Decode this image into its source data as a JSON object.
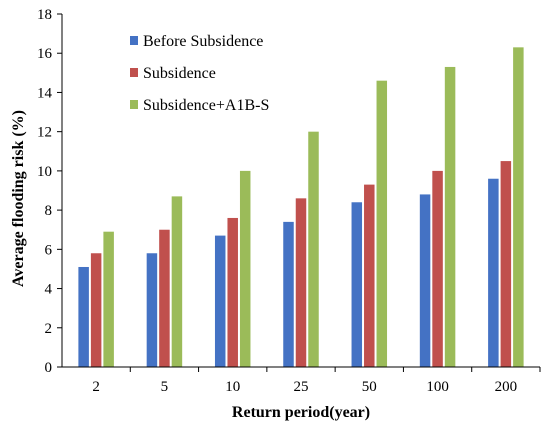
{
  "chart_data": {
    "type": "bar",
    "title": "",
    "xlabel": "Return period(year)",
    "ylabel": "Average flooding risk (%)",
    "categories": [
      "2",
      "5",
      "10",
      "25",
      "50",
      "100",
      "200"
    ],
    "ylim": [
      0,
      18
    ],
    "yticks": [
      0,
      2,
      4,
      6,
      8,
      10,
      12,
      14,
      16,
      18
    ],
    "grid": false,
    "legend_position": "top-left",
    "series": [
      {
        "name": "Before Subsidence",
        "color": "#4472C4",
        "values": [
          5.1,
          5.8,
          6.7,
          7.4,
          8.4,
          8.8,
          9.6
        ]
      },
      {
        "name": "Subsidence",
        "color": "#C0504D",
        "values": [
          5.8,
          7.0,
          7.6,
          8.6,
          9.3,
          10.0,
          10.5
        ]
      },
      {
        "name": "Subsidence+A1B-S",
        "color": "#9BBB59",
        "values": [
          6.9,
          8.7,
          10.0,
          12.0,
          14.6,
          15.3,
          16.3
        ]
      }
    ]
  }
}
